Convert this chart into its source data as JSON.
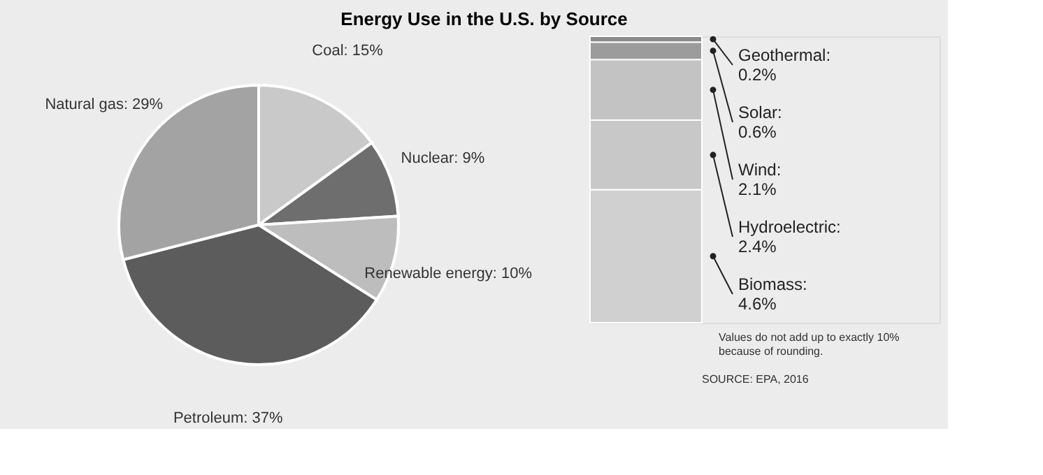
{
  "chart_data": [
    {
      "type": "pie",
      "title": "Energy Use in the U.S. by Source",
      "categories": [
        "Coal",
        "Nuclear",
        "Renewable energy",
        "Petroleum",
        "Natural gas"
      ],
      "values": [
        15,
        9,
        10,
        37,
        29
      ],
      "colors": [
        "#c9c9c9",
        "#6e6e6e",
        "#bdbdbd",
        "#5c5c5c",
        "#a3a3a3"
      ],
      "value_labels": [
        "15%",
        "9%",
        "10%",
        "37%",
        "29%"
      ]
    },
    {
      "type": "bar",
      "stacked": true,
      "categories": [
        null
      ],
      "tick_labels": false,
      "series": [
        {
          "name": "Biomass:",
          "color": "#d0d0d0",
          "values": [
            4.6
          ],
          "value_labels": [
            "4.6%"
          ]
        },
        {
          "name": "Hydroelectric:",
          "color": "#c8c8c8",
          "values": [
            2.4
          ],
          "value_labels": [
            "2.4%"
          ]
        },
        {
          "name": "Wind:",
          "color": "#c3c3c3",
          "values": [
            2.1
          ],
          "value_labels": [
            "2.1%"
          ]
        },
        {
          "name": "Solar:",
          "color": "#9c9c9c",
          "values": [
            0.6
          ],
          "value_labels": [
            "0.6%"
          ]
        },
        {
          "name": "Geothermal:",
          "color": "#8a8a8a",
          "values": [
            0.2
          ],
          "value_labels": [
            "0.2%"
          ]
        }
      ],
      "annotations": [
        "Values do not add up to exactly 10% because of rounding.",
        "SOURCE: EPA, 2016"
      ]
    }
  ]
}
